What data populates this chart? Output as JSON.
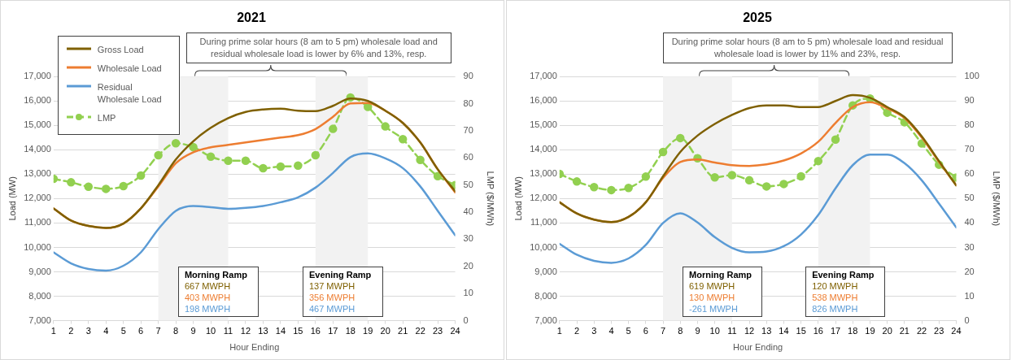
{
  "chart_data": [
    {
      "type": "line",
      "title": "2021",
      "xlabel": "Hour Ending",
      "ylabel": "Load (MW)",
      "y2label": "LMP ($/MWh)",
      "x": [
        1,
        2,
        3,
        4,
        5,
        6,
        7,
        8,
        9,
        10,
        11,
        12,
        13,
        14,
        15,
        16,
        17,
        18,
        19,
        20,
        21,
        22,
        23,
        24
      ],
      "xlim": [
        1,
        24
      ],
      "xticks": [
        1,
        2,
        3,
        4,
        5,
        6,
        7,
        8,
        9,
        10,
        11,
        12,
        13,
        14,
        15,
        16,
        17,
        18,
        19,
        20,
        21,
        22,
        23,
        24
      ],
      "ylim": [
        7000,
        17000
      ],
      "yticks": [
        {
          "value": 7000,
          "label": "7,000"
        },
        {
          "value": 8000,
          "label": "8,000"
        },
        {
          "value": 9000,
          "label": "9,000"
        },
        {
          "value": 10000,
          "label": "10,000"
        },
        {
          "value": 11000,
          "label": "11,000"
        },
        {
          "value": 12000,
          "label": "12,000"
        },
        {
          "value": 13000,
          "label": "13,000"
        },
        {
          "value": 14000,
          "label": "14,000"
        },
        {
          "value": 15000,
          "label": "15,000"
        },
        {
          "value": 16000,
          "label": "16,000"
        },
        {
          "value": 17000,
          "label": "17,000"
        }
      ],
      "y2lim": [
        0,
        90
      ],
      "y2ticks": [
        0,
        10,
        20,
        30,
        40,
        50,
        60,
        70,
        80,
        90
      ],
      "grid": "y",
      "legend": "top left",
      "bands": [
        {
          "axis": "x",
          "from": 7,
          "to": 11,
          "color": "#f2f2f2"
        },
        {
          "axis": "x",
          "from": 16,
          "to": 19,
          "color": "#f2f2f2"
        }
      ],
      "series": [
        {
          "name": "Gross Load",
          "color": "#7f6000",
          "marker": "none",
          "line_style": "solid",
          "values": [
            11600,
            11100,
            10880,
            10800,
            10980,
            11600,
            12550,
            13600,
            14350,
            14900,
            15300,
            15550,
            15650,
            15680,
            15600,
            15580,
            15800,
            16100,
            16000,
            15600,
            15100,
            14300,
            13200,
            12300
          ]
        },
        {
          "name": "Wholesale Load",
          "color": "#ed7d31",
          "marker": "none",
          "line_style": "solid",
          "values": [
            11600,
            11100,
            10880,
            10800,
            10980,
            11600,
            12500,
            13450,
            13900,
            14100,
            14200,
            14300,
            14400,
            14500,
            14600,
            14850,
            15350,
            15900,
            15920,
            15600,
            15100,
            14300,
            13200,
            12250
          ]
        },
        {
          "name": "Residual Wholesale Load",
          "color": "#5b9bd5",
          "marker": "none",
          "line_style": "solid",
          "values": [
            9800,
            9350,
            9120,
            9050,
            9250,
            9800,
            10750,
            11500,
            11700,
            11650,
            11580,
            11620,
            11700,
            11850,
            12050,
            12450,
            13050,
            13700,
            13850,
            13650,
            13250,
            12500,
            11500,
            10500
          ]
        },
        {
          "name": "LMP",
          "color": "#92d050",
          "marker": "circle",
          "line_style": "dashed",
          "axis": "y2",
          "values": [
            52.3,
            51,
            49.4,
            48.6,
            49.6,
            53.5,
            61,
            65.4,
            64,
            60.5,
            59,
            59,
            56.2,
            56.8,
            57.2,
            61,
            70.7,
            82.3,
            78.8,
            71.6,
            66.9,
            59.3,
            53.3,
            50
          ]
        }
      ],
      "annotations": [
        "During prime solar hours (8 am to 5 pm) wholesale load and residual wholesale load is lower by 6% and 13%, resp.",
        "Morning Ramp",
        "667 MWPH",
        "403 MWPH",
        "198 MWPH",
        "Evening Ramp",
        "137 MWPH",
        "356 MWPH",
        "467 MWPH"
      ]
    },
    {
      "type": "line",
      "title": "2025",
      "xlabel": "Hour Ending",
      "ylabel": "Load (MW)",
      "y2label": "LMP ($/MWh)",
      "x": [
        1,
        2,
        3,
        4,
        5,
        6,
        7,
        8,
        9,
        10,
        11,
        12,
        13,
        14,
        15,
        16,
        17,
        18,
        19,
        20,
        21,
        22,
        23,
        24
      ],
      "xlim": [
        1,
        24
      ],
      "xticks": [
        1,
        2,
        3,
        4,
        5,
        6,
        7,
        8,
        9,
        10,
        11,
        12,
        13,
        14,
        15,
        16,
        17,
        18,
        19,
        20,
        21,
        22,
        23,
        24
      ],
      "ylim": [
        7000,
        17000
      ],
      "yticks": [
        {
          "value": 7000,
          "label": "7,000"
        },
        {
          "value": 8000,
          "label": "8,000"
        },
        {
          "value": 9000,
          "label": "9,000"
        },
        {
          "value": 10000,
          "label": "10,000"
        },
        {
          "value": 11000,
          "label": "11,000"
        },
        {
          "value": 12000,
          "label": "12,000"
        },
        {
          "value": 13000,
          "label": "13,000"
        },
        {
          "value": 14000,
          "label": "14,000"
        },
        {
          "value": 15000,
          "label": "15,000"
        },
        {
          "value": 16000,
          "label": "16,000"
        },
        {
          "value": 17000,
          "label": "17,000"
        }
      ],
      "y2lim": [
        0,
        100
      ],
      "y2ticks": [
        0,
        10,
        20,
        30,
        40,
        50,
        60,
        70,
        80,
        90,
        100
      ],
      "grid": "y",
      "bands": [
        {
          "axis": "x",
          "from": 7,
          "to": 11,
          "color": "#f2f2f2"
        },
        {
          "axis": "x",
          "from": 16,
          "to": 19,
          "color": "#f2f2f2"
        }
      ],
      "series": [
        {
          "color": "#7f6000",
          "marker": "none",
          "line_style": "solid",
          "values": [
            11850,
            11390,
            11140,
            11040,
            11250,
            11850,
            12910,
            13910,
            14580,
            15060,
            15430,
            15710,
            15820,
            15820,
            15750,
            15750,
            16000,
            16240,
            16130,
            15750,
            15340,
            14550,
            13540,
            12540
          ]
        },
        {
          "color": "#ed7d31",
          "marker": "none",
          "line_style": "solid",
          "values": [
            11850,
            11390,
            11140,
            11040,
            11250,
            11850,
            12850,
            13500,
            13600,
            13480,
            13370,
            13340,
            13400,
            13560,
            13850,
            14330,
            15100,
            15750,
            15950,
            15700,
            15300,
            14500,
            13500,
            12550
          ]
        },
        {
          "color": "#5b9bd5",
          "marker": "none",
          "line_style": "solid",
          "values": [
            10150,
            9700,
            9450,
            9370,
            9550,
            10100,
            11000,
            11400,
            11020,
            10420,
            9980,
            9800,
            9830,
            10050,
            10530,
            11330,
            12420,
            13370,
            13800,
            13800,
            13450,
            12750,
            11800,
            10820
          ]
        },
        {
          "color": "#92d050",
          "marker": "circle",
          "line_style": "dashed",
          "axis": "y2",
          "values": [
            60.1,
            57,
            54.7,
            53.5,
            54.4,
            59,
            69.1,
            74.8,
            66.5,
            58.7,
            59.6,
            57.5,
            55,
            56,
            59.1,
            65.4,
            74.2,
            88.2,
            91,
            85.2,
            81.3,
            72.6,
            63.9,
            58.6
          ]
        }
      ],
      "annotations": [
        "During prime solar hours (8 am to 5 pm) wholesale load and residual wholesale load is lower by 11% and 23%, resp.",
        "Morning Ramp",
        "619 MWPH",
        "130 MWPH",
        "-261 MWPH",
        "Evening Ramp",
        "120 MWPH",
        "538 MWPH",
        "826 MWPH"
      ]
    }
  ]
}
